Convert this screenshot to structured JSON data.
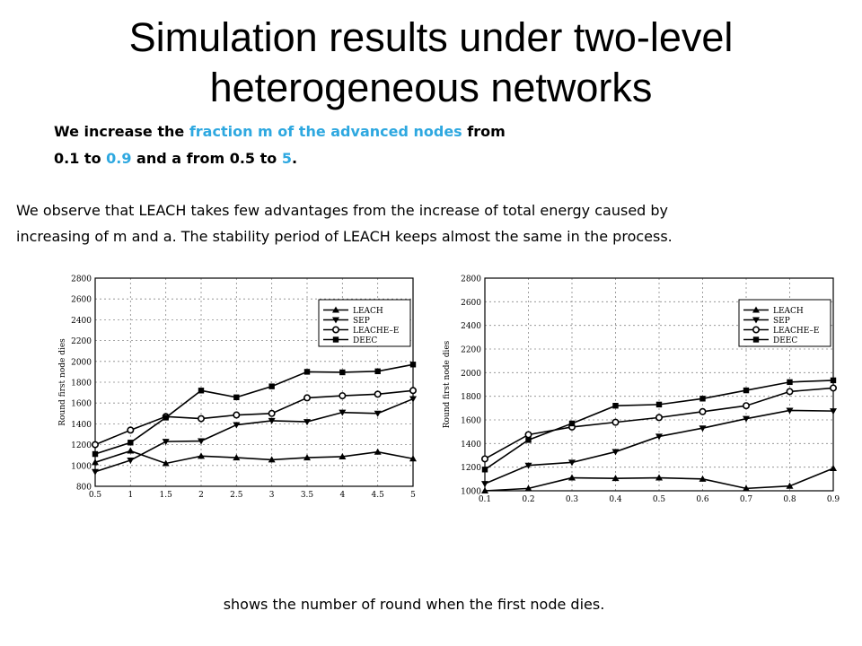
{
  "page": {
    "title_line1": "Simulation results under two-level",
    "title_line2": "heterogeneous networks",
    "intro": {
      "part1": "We increase the ",
      "highlight1": "fraction m of the advanced nodes",
      "part2": " from",
      "part3": "0.1 to ",
      "highlight2": "0.9",
      "part4": " and a from 0.5 to ",
      "highlight3": "5",
      "part5": "."
    },
    "observation_line1": "We observe that LEACH takes few advantages from the increase of total energy caused by",
    "observation_line2": "increasing of m and a. The stability period of LEACH keeps almost the same in the process.",
    "caption": "shows the number of round when the first node dies.",
    "highlight_color": "#2ea8e0"
  },
  "chart_data": [
    {
      "type": "line",
      "xlabel": "",
      "ylabel": "Round first node dies",
      "x": [
        0.5,
        1,
        1.5,
        2,
        2.5,
        3,
        3.5,
        4,
        4.5,
        5
      ],
      "x_ticks": [
        "0.5",
        "1",
        "1.5",
        "2",
        "2.5",
        "3",
        "3.5",
        "4",
        "4.5",
        "5"
      ],
      "xlim": [
        0.5,
        5
      ],
      "ylim": [
        800,
        2800
      ],
      "y_ticks": [
        800,
        1000,
        1200,
        1400,
        1600,
        1800,
        2000,
        2200,
        2400,
        2600,
        2800
      ],
      "grid": true,
      "legend_position": "top-right",
      "series": [
        {
          "name": "LEACH",
          "marker": "triangle-up",
          "values": [
            1030,
            1140,
            1020,
            1090,
            1075,
            1055,
            1075,
            1085,
            1130,
            1065
          ]
        },
        {
          "name": "SEP",
          "marker": "triangle-down",
          "values": [
            940,
            1050,
            1230,
            1235,
            1390,
            1430,
            1420,
            1510,
            1500,
            1640
          ]
        },
        {
          "name": "LEACHE–E",
          "marker": "circle",
          "values": [
            1200,
            1340,
            1470,
            1450,
            1485,
            1500,
            1650,
            1670,
            1685,
            1720
          ]
        },
        {
          "name": "DEEC",
          "marker": "square",
          "values": [
            1110,
            1220,
            1460,
            1720,
            1655,
            1760,
            1900,
            1895,
            1905,
            1970
          ]
        }
      ]
    },
    {
      "type": "line",
      "xlabel": "",
      "ylabel": "Round first node dies",
      "x": [
        0.1,
        0.2,
        0.3,
        0.4,
        0.5,
        0.6,
        0.7,
        0.8,
        0.9
      ],
      "x_ticks": [
        "0.1",
        "0.2",
        "0.3",
        "0.4",
        "0.5",
        "0.6",
        "0.7",
        "0.8",
        "0.9"
      ],
      "xlim": [
        0.1,
        0.9
      ],
      "ylim": [
        1000,
        2800
      ],
      "y_ticks": [
        1000,
        1200,
        1400,
        1600,
        1800,
        2000,
        2200,
        2400,
        2600,
        2800
      ],
      "grid": true,
      "legend_position": "top-right",
      "series": [
        {
          "name": "LEACH",
          "marker": "triangle-up",
          "values": [
            1000,
            1020,
            1110,
            1105,
            1110,
            1100,
            1020,
            1040,
            1190
          ]
        },
        {
          "name": "SEP",
          "marker": "triangle-down",
          "values": [
            1060,
            1215,
            1240,
            1330,
            1460,
            1530,
            1610,
            1680,
            1675
          ]
        },
        {
          "name": "LEACHE–E",
          "marker": "circle",
          "values": [
            1270,
            1475,
            1540,
            1580,
            1620,
            1670,
            1720,
            1840,
            1870
          ]
        },
        {
          "name": "DEEC",
          "marker": "square",
          "values": [
            1180,
            1430,
            1570,
            1720,
            1730,
            1780,
            1850,
            1920,
            1935
          ]
        }
      ]
    }
  ]
}
